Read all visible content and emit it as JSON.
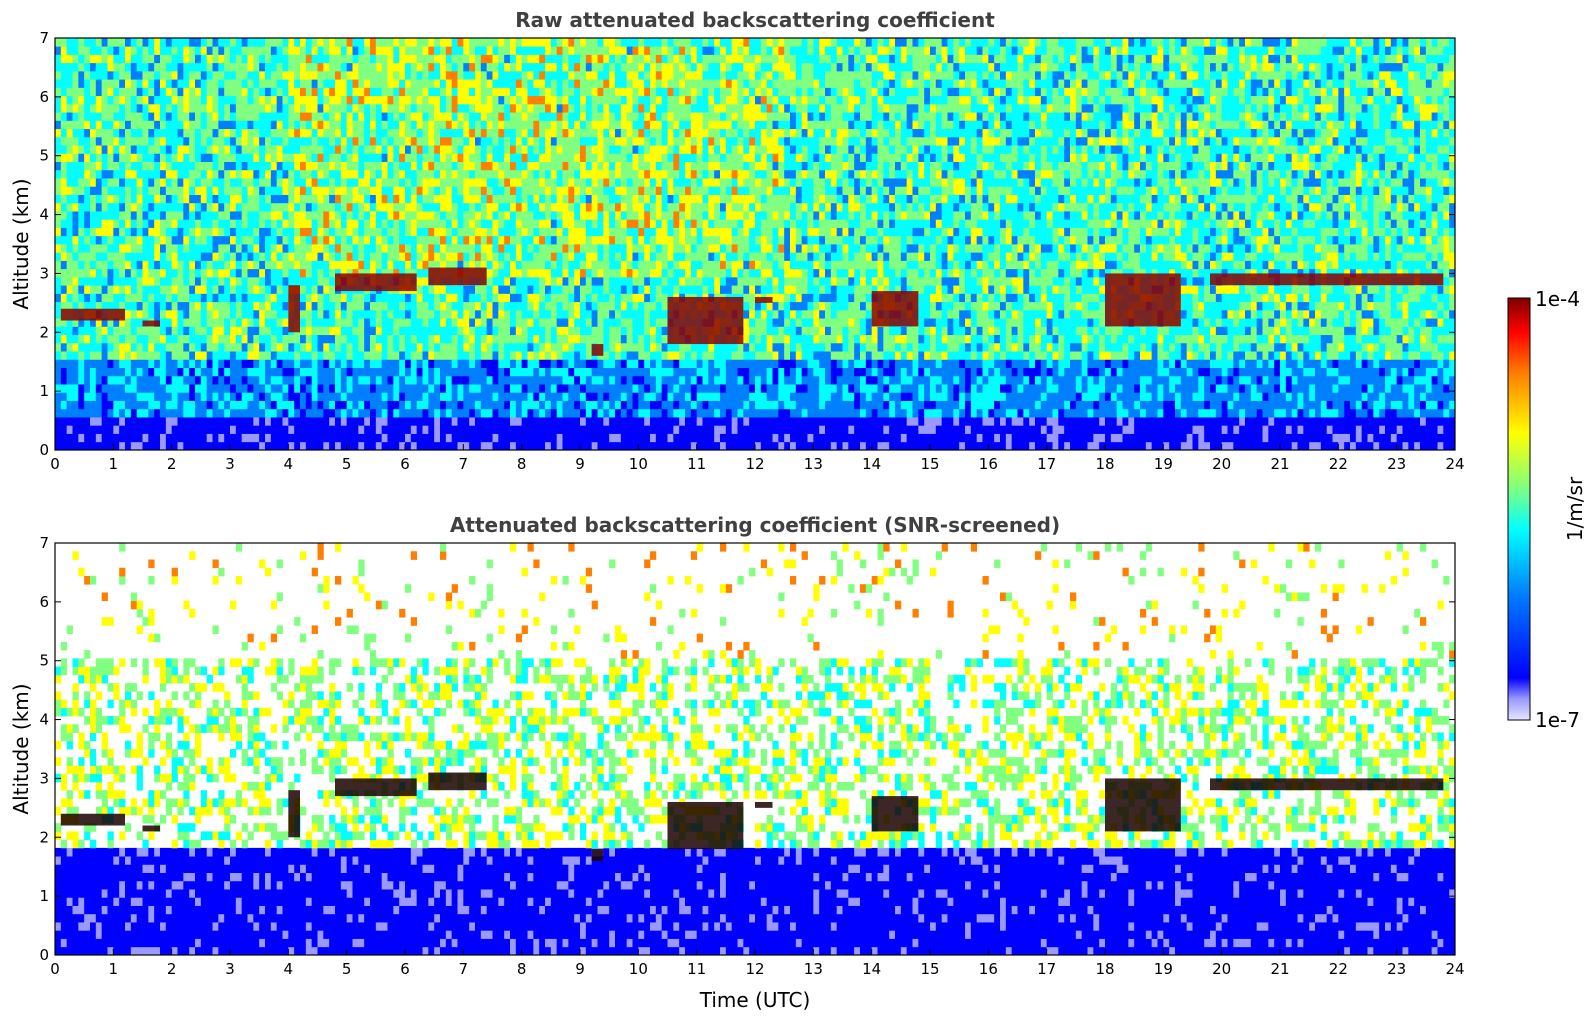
{
  "chart_data": [
    {
      "type": "heatmap",
      "title": "Raw attenuated backscattering coefficient",
      "xlabel": "",
      "ylabel": "Altitude (km)",
      "xlim": [
        0,
        24
      ],
      "ylim": [
        0,
        7
      ],
      "xticks": [
        0,
        1,
        2,
        3,
        4,
        5,
        6,
        7,
        8,
        9,
        10,
        11,
        12,
        13,
        14,
        15,
        16,
        17,
        18,
        19,
        20,
        21,
        22,
        23,
        24
      ],
      "yticks": [
        0,
        1,
        2,
        3,
        4,
        5,
        6,
        7
      ],
      "screened": false,
      "cloud_layers": [
        {
          "t": [
            0.1,
            1.2
          ],
          "z": [
            2.2,
            2.4
          ]
        },
        {
          "t": [
            1.5,
            1.8
          ],
          "z": [
            2.1,
            2.2
          ]
        },
        {
          "t": [
            4.0,
            4.2
          ],
          "z": [
            2.0,
            2.8
          ]
        },
        {
          "t": [
            4.8,
            6.2
          ],
          "z": [
            2.7,
            3.0
          ]
        },
        {
          "t": [
            6.4,
            7.4
          ],
          "z": [
            2.8,
            3.1
          ]
        },
        {
          "t": [
            9.2,
            9.4
          ],
          "z": [
            1.6,
            1.8
          ]
        },
        {
          "t": [
            10.5,
            11.8
          ],
          "z": [
            1.8,
            2.6
          ]
        },
        {
          "t": [
            12.0,
            12.3
          ],
          "z": [
            2.5,
            2.6
          ]
        },
        {
          "t": [
            14.0,
            14.8
          ],
          "z": [
            2.1,
            2.7
          ]
        },
        {
          "t": [
            18.0,
            19.3
          ],
          "z": [
            2.1,
            3.0
          ]
        },
        {
          "t": [
            19.8,
            23.8
          ],
          "z": [
            2.8,
            3.0
          ]
        }
      ]
    },
    {
      "type": "heatmap",
      "title": "Attenuated backscattering coefficient (SNR-screened)",
      "xlabel": "Time (UTC)",
      "ylabel": "Altitude (km)",
      "xlim": [
        0,
        24
      ],
      "ylim": [
        0,
        7
      ],
      "xticks": [
        0,
        1,
        2,
        3,
        4,
        5,
        6,
        7,
        8,
        9,
        10,
        11,
        12,
        13,
        14,
        15,
        16,
        17,
        18,
        19,
        20,
        21,
        22,
        23,
        24
      ],
      "yticks": [
        0,
        1,
        2,
        3,
        4,
        5,
        6,
        7
      ],
      "screened": true
    }
  ],
  "colorbar": {
    "label": "1/m/sr",
    "max_label": "1e-4",
    "min_label": "1e-7",
    "scale": "log",
    "range": [
      1e-07,
      0.0001
    ],
    "colormap": [
      "#e6e6ff",
      "#9999ff",
      "#0000ff",
      "#0080ff",
      "#00ffff",
      "#80ff80",
      "#ffff00",
      "#ff8000",
      "#ff0000",
      "#800000"
    ]
  }
}
